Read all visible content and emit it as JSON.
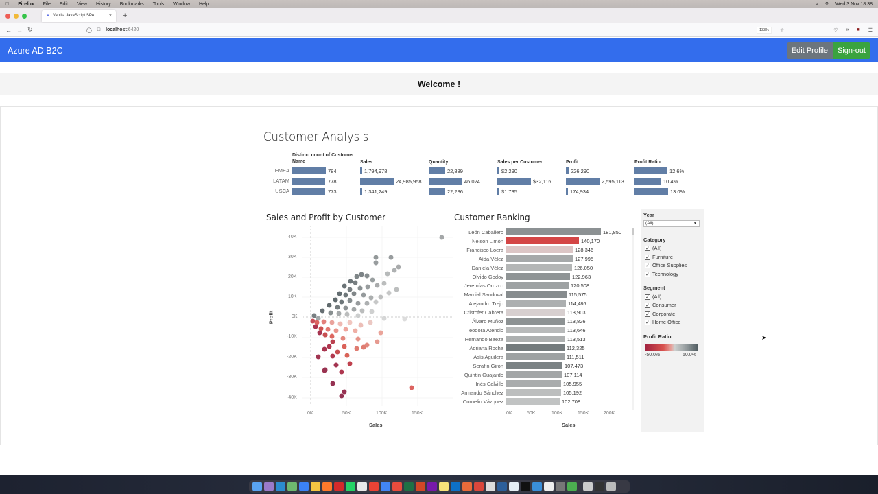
{
  "os_menubar": {
    "app": "Firefox",
    "menus": [
      "File",
      "Edit",
      "View",
      "History",
      "Bookmarks",
      "Tools",
      "Window",
      "Help"
    ],
    "clock": "Wed 3 Nov  18:38"
  },
  "browser": {
    "tab_title": "Vanilla JavaScript SPA",
    "url_host": "localhost",
    "url_port": ":6420",
    "zoom": "133%"
  },
  "app": {
    "brand": "Azure AD B2C",
    "edit_profile": "Edit Profile",
    "sign_out": "Sign-out",
    "welcome": "Welcome !"
  },
  "dashboard": {
    "title": "Customer Analysis",
    "kpi": {
      "headers": [
        "Distinct count of Customer Name",
        "Sales",
        "Quantity",
        "Sales per Customer",
        "Profit",
        "Profit Ratio"
      ],
      "regions": [
        "EMEA",
        "LATAM",
        "USCA"
      ],
      "rows": [
        {
          "region": "EMEA",
          "count": "784",
          "sales": "1,794,978",
          "quantity": "22,889",
          "spc": "$2,290",
          "profit": "226,290",
          "ratio": "12.6%"
        },
        {
          "region": "LATAM",
          "count": "778",
          "sales": "24,985,958",
          "quantity": "46,024",
          "spc": "$32,116",
          "profit": "2,595,113",
          "ratio": "10.4%"
        },
        {
          "region": "USCA",
          "count": "773",
          "sales": "1,341,249",
          "quantity": "22,286",
          "spc": "$1,735",
          "profit": "174,934",
          "ratio": "13.0%"
        }
      ]
    },
    "scatter": {
      "title": "Sales and Profit by Customer",
      "x_title": "Sales",
      "y_title": "Profit",
      "x_ticks": [
        "0K",
        "50K",
        "100K",
        "150K"
      ],
      "y_ticks": [
        "40K",
        "30K",
        "20K",
        "10K",
        "0K",
        "-10K",
        "-20K",
        "-30K",
        "-40K"
      ]
    },
    "ranking": {
      "title": "Customer Ranking",
      "x_title": "Sales",
      "x_ticks": [
        "0K",
        "50K",
        "100K",
        "150K",
        "200K"
      ],
      "items": [
        {
          "name": "León Caballero",
          "value": "181,850",
          "color": "#8c9193"
        },
        {
          "name": "Nelson Limón",
          "value": "140,170",
          "color": "#d44646"
        },
        {
          "name": "Francisco Loera",
          "value": "128,346",
          "color": "#dcc6c6"
        },
        {
          "name": "Aída Vélez",
          "value": "127,995",
          "color": "#a6a9aa"
        },
        {
          "name": "Daniela Vélez",
          "value": "126,050",
          "color": "#b4b6b6"
        },
        {
          "name": "Olvido Godoy",
          "value": "122,963",
          "color": "#8f9495"
        },
        {
          "name": "Jeremías Orozco",
          "value": "120,508",
          "color": "#9ea2a3"
        },
        {
          "name": "Marcial Sandoval",
          "value": "115,575",
          "color": "#878c8e"
        },
        {
          "name": "Alejandro Trejo",
          "value": "114,486",
          "color": "#acafb0"
        },
        {
          "name": "Cristofer Cabrera",
          "value": "113,903",
          "color": "#d7cfcf"
        },
        {
          "name": "Álvaro Muñoz",
          "value": "113,826",
          "color": "#8d9293"
        },
        {
          "name": "Teodora Atencio",
          "value": "113,646",
          "color": "#b8baba"
        },
        {
          "name": "Hernando Baeza",
          "value": "113,513",
          "color": "#adb0b0"
        },
        {
          "name": "Adriana Rocha",
          "value": "112,325",
          "color": "#747b7d"
        },
        {
          "name": "Asís Aguilera",
          "value": "111,511",
          "color": "#9da1a2"
        },
        {
          "name": "Serafín Girón",
          "value": "107,473",
          "color": "#7b8284"
        },
        {
          "name": "Quintín Guajardo",
          "value": "107,114",
          "color": "#a3a6a7"
        },
        {
          "name": "Inés Calvillo",
          "value": "105,955",
          "color": "#a9acad"
        },
        {
          "name": "Armando Sánchez",
          "value": "105,192",
          "color": "#bcbebe"
        },
        {
          "name": "Cornelio Vázquez",
          "value": "102,708",
          "color": "#c1c3c3"
        }
      ]
    },
    "filters": {
      "year_label": "Year",
      "year_value": "(All)",
      "category_label": "Category",
      "category_options": [
        "(All)",
        "Furniture",
        "Office Supplies",
        "Technology"
      ],
      "segment_label": "Segment",
      "segment_options": [
        "(All)",
        "Consumer",
        "Corporate",
        "Home Office"
      ],
      "legend_label": "Profit Ratio",
      "legend_min": "-50.0%",
      "legend_max": "50.0%"
    }
  }
}
